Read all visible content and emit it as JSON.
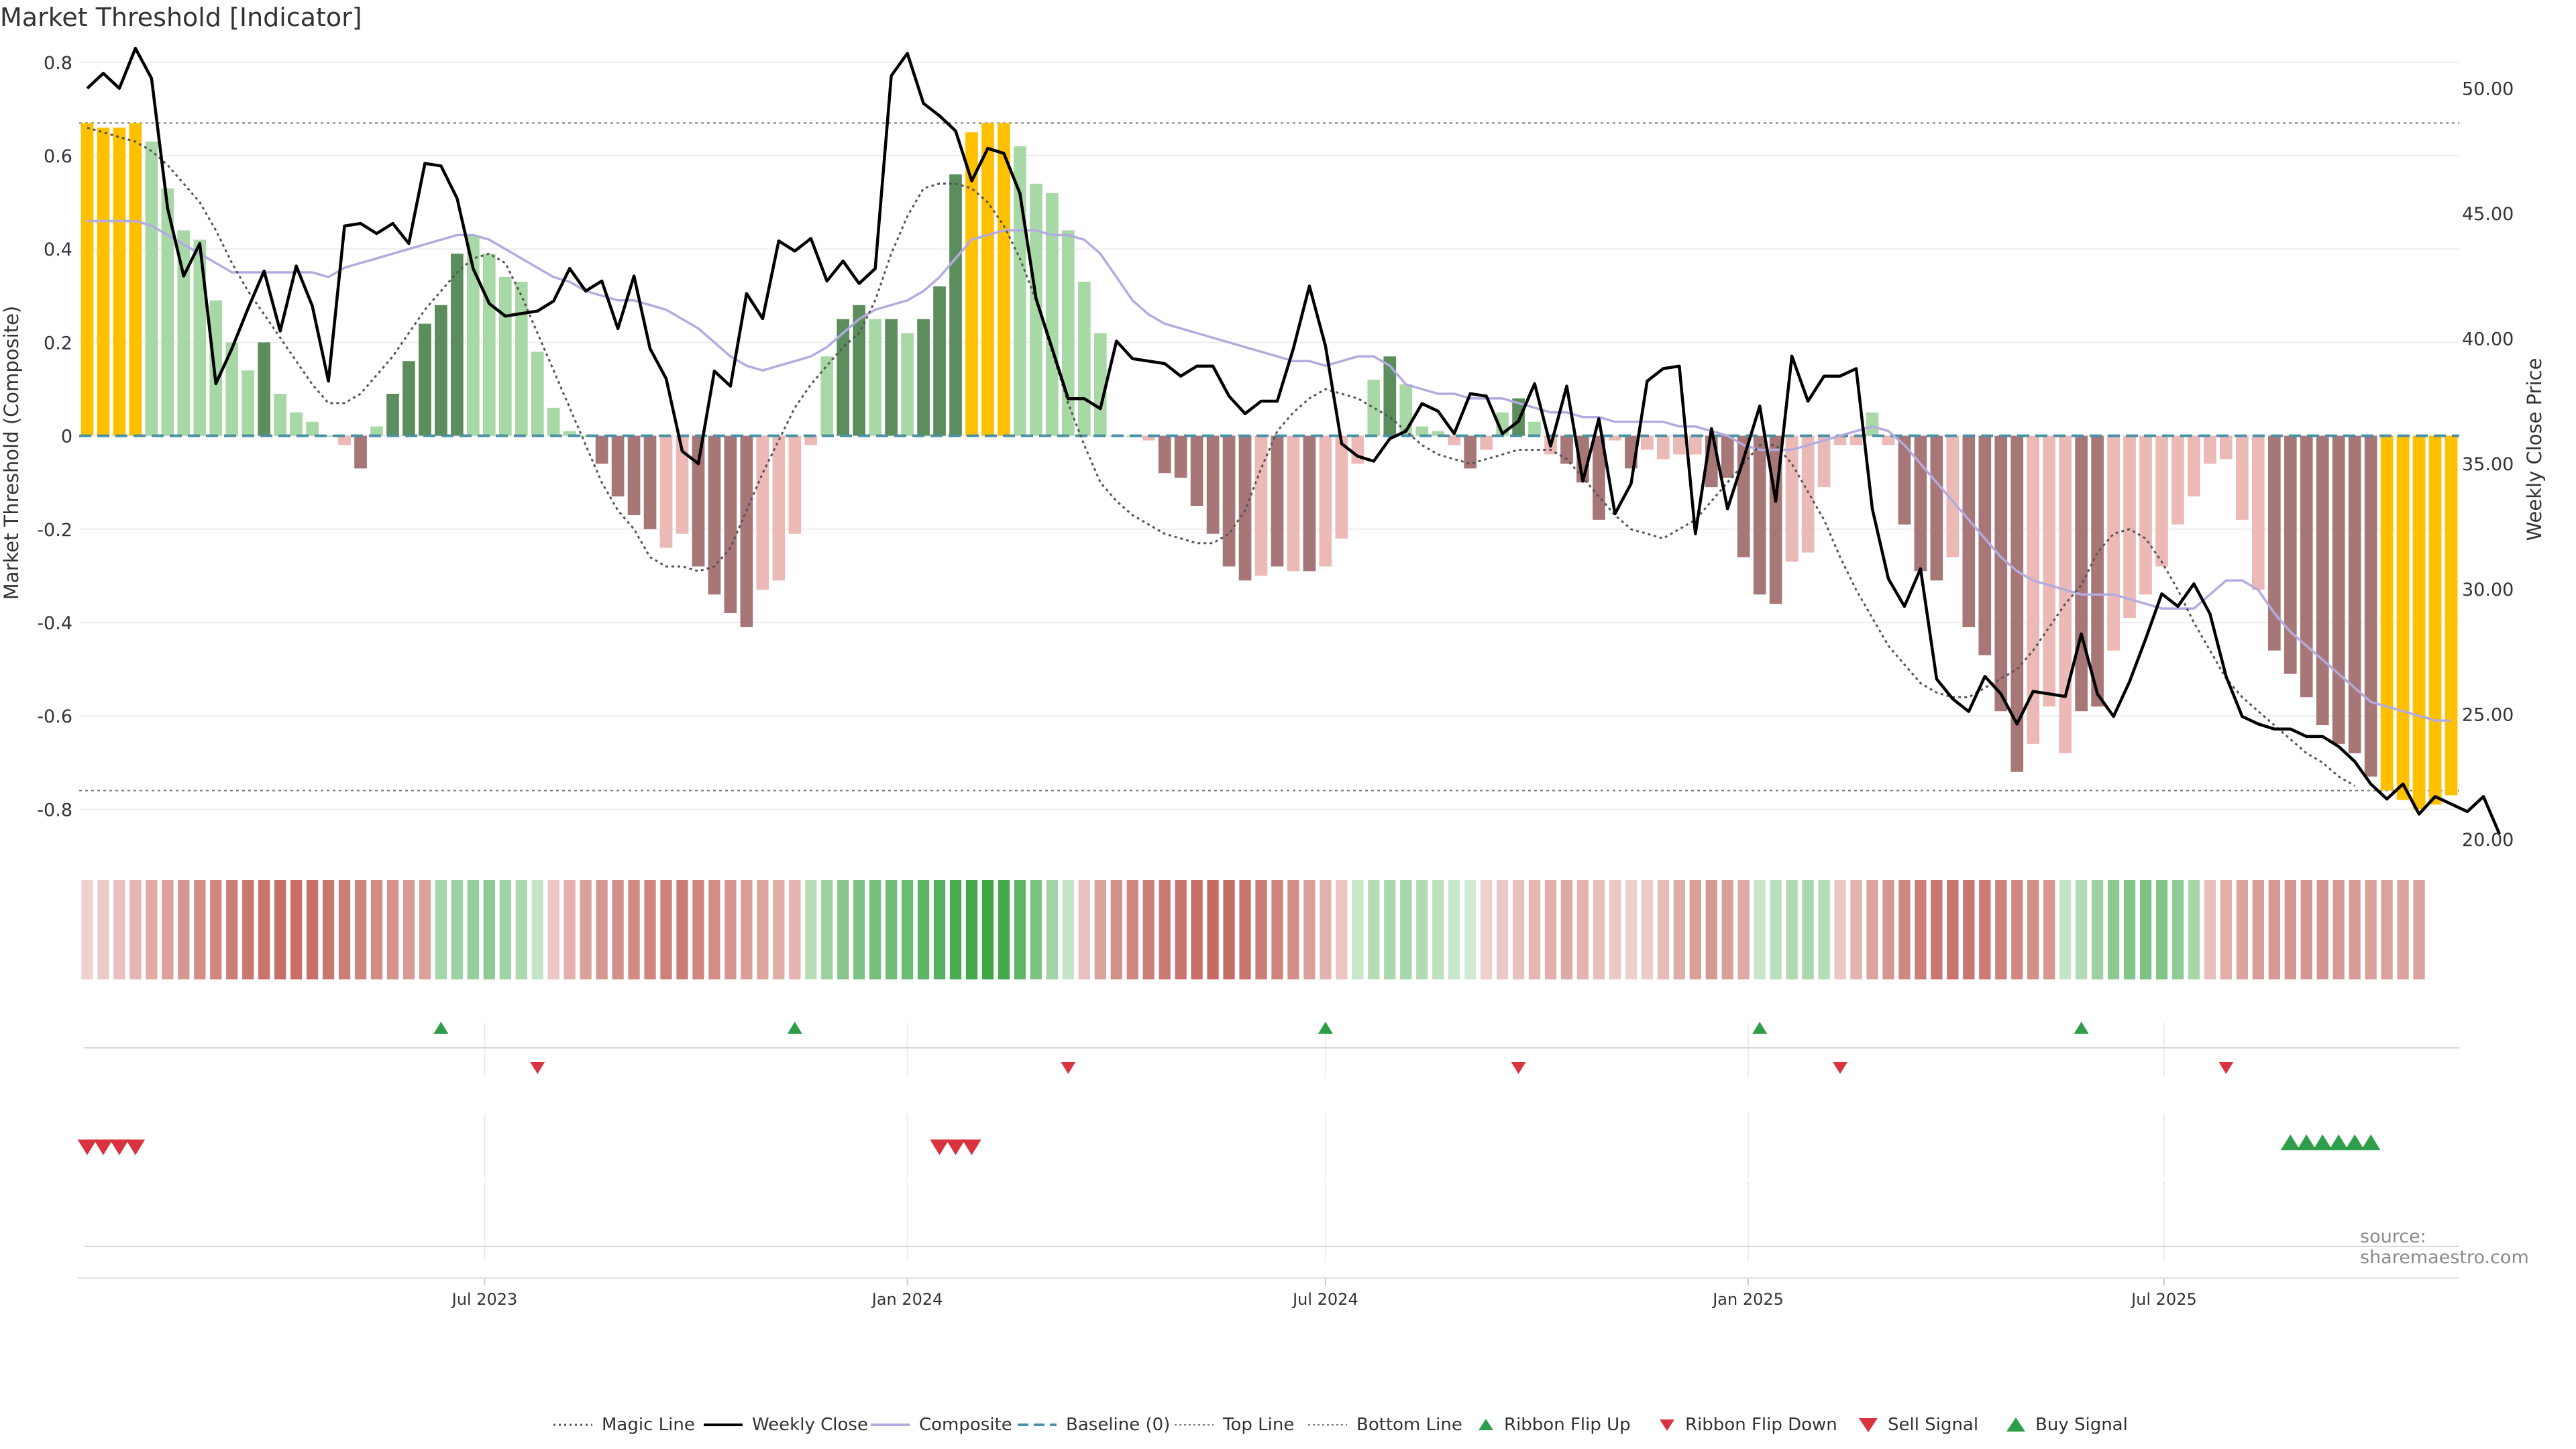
{
  "title": "Market Threshold [Indicator]",
  "source": "source: sharemaestro.com",
  "colors": {
    "magic_line": "#555555",
    "weekly_close": "#000000",
    "composite": "#b3abe0",
    "baseline": "#4a90a4",
    "top_line": "#777777",
    "bottom_line": "#777777",
    "bar_gold": "#ffc000",
    "bar_green_dark": "#5c8d5c",
    "bar_green_light": "#a8d8a6",
    "bar_red_dark": "#a77676",
    "bar_red_light": "#ecbab6",
    "ribbon_flip_up": "#2e9e4a",
    "ribbon_flip_down": "#d9333f",
    "sell_signal": "#d9333f",
    "buy_signal": "#2e9e4a"
  },
  "legend": [
    {
      "label": "Magic Line",
      "icon": "dotted-line-icon"
    },
    {
      "label": "Weekly Close",
      "icon": "solid-line-icon"
    },
    {
      "label": "Composite",
      "icon": "lavender-line-icon"
    },
    {
      "label": "Baseline (0)",
      "icon": "dashed-line-icon"
    },
    {
      "label": "Top Line",
      "icon": "dotted-grey-line-icon"
    },
    {
      "label": "Bottom Line",
      "icon": "dotted-grey-line-icon"
    },
    {
      "label": "Ribbon Flip Up",
      "icon": "triangle-up-icon"
    },
    {
      "label": "Ribbon Flip Down",
      "icon": "triangle-down-icon"
    },
    {
      "label": "Sell Signal",
      "icon": "big-triangle-down-icon"
    },
    {
      "label": "Buy Signal",
      "icon": "big-triangle-up-icon"
    }
  ],
  "chart_data": {
    "type": "bar",
    "ylabel_left": "Market Threshold (Composite)",
    "ylabel_right": "Weekly Close Price",
    "ylim_left": [
      -0.88,
      0.83
    ],
    "ylim_right": [
      19.7,
      51.6
    ],
    "yticks_left": [
      "0.8",
      "0.6",
      "0.4",
      "0.2",
      "0",
      "-0.2",
      "-0.4",
      "-0.6",
      "-0.8"
    ],
    "ytick_values_left": [
      0.8,
      0.6,
      0.4,
      0.2,
      0,
      -0.2,
      -0.4,
      -0.6,
      -0.8
    ],
    "yticks_right": [
      "50.00",
      "45.00",
      "40.00",
      "35.00",
      "30.00",
      "25.00",
      "20.00"
    ],
    "ytick_values_right": [
      50,
      45,
      40,
      35,
      30,
      25,
      20
    ],
    "x_start": "2023-01-09",
    "x_step_days": 7,
    "x_tick_labels": [
      "Jul 2023",
      "Jan 2024",
      "Jul 2024",
      "Jan 2025",
      "Jul 2025"
    ],
    "x_tick_dates": [
      "2023-07-01",
      "2024-01-01",
      "2024-07-01",
      "2025-01-01",
      "2025-07-01"
    ],
    "top_line": 0.67,
    "bottom_line": -0.76,
    "baseline": 0,
    "bar_values": [
      0.67,
      0.66,
      0.66,
      0.67,
      0.63,
      0.53,
      0.44,
      0.42,
      0.29,
      0.2,
      0.14,
      0.2,
      0.09,
      0.05,
      0.03,
      0.0,
      -0.02,
      -0.07,
      0.02,
      0.09,
      0.16,
      0.24,
      0.28,
      0.39,
      0.43,
      0.39,
      0.34,
      0.33,
      0.18,
      0.06,
      0.01,
      0.0,
      -0.06,
      -0.13,
      -0.17,
      -0.2,
      -0.24,
      -0.21,
      -0.28,
      -0.34,
      -0.38,
      -0.41,
      -0.33,
      -0.31,
      -0.21,
      -0.02,
      0.17,
      0.25,
      0.28,
      0.25,
      0.25,
      0.22,
      0.25,
      0.32,
      0.56,
      0.65,
      0.67,
      0.67,
      0.62,
      0.54,
      0.52,
      0.44,
      0.33,
      0.22,
      0.0,
      0.0,
      -0.01,
      -0.08,
      -0.09,
      -0.15,
      -0.21,
      -0.28,
      -0.31,
      -0.3,
      -0.28,
      -0.29,
      -0.29,
      -0.28,
      -0.22,
      -0.06,
      0.12,
      0.17,
      0.11,
      0.02,
      0.01,
      -0.02,
      -0.07,
      -0.03,
      0.05,
      0.08,
      0.03,
      -0.04,
      -0.06,
      -0.1,
      -0.18,
      -0.01,
      -0.07,
      -0.03,
      -0.05,
      -0.04,
      -0.04,
      -0.11,
      -0.09,
      -0.26,
      -0.34,
      -0.36,
      -0.27,
      -0.25,
      -0.11,
      -0.02,
      -0.02,
      0.05,
      -0.02,
      -0.19,
      -0.29,
      -0.31,
      -0.26,
      -0.41,
      -0.47,
      -0.59,
      -0.72,
      -0.66,
      -0.58,
      -0.68,
      -0.59,
      -0.58,
      -0.46,
      -0.39,
      -0.34,
      -0.28,
      -0.19,
      -0.13,
      -0.06,
      -0.05,
      -0.18,
      -0.33,
      -0.46,
      -0.51,
      -0.56,
      -0.62,
      -0.66,
      -0.68,
      -0.73,
      -0.76,
      -0.78,
      -0.8,
      -0.79,
      -0.77
    ],
    "bar_colors": [
      "gold",
      "gold",
      "gold",
      "gold",
      "green_light",
      "green_light",
      "green_light",
      "green_light",
      "green_light",
      "green_light",
      "green_light",
      "green_dark",
      "green_light",
      "green_light",
      "green_light",
      "green_light",
      "red_light",
      "red_dark",
      "green_light",
      "green_dark",
      "green_dark",
      "green_dark",
      "green_dark",
      "green_dark",
      "green_light",
      "green_light",
      "green_light",
      "green_light",
      "green_light",
      "green_light",
      "green_light",
      "green_light",
      "red_dark",
      "red_dark",
      "red_dark",
      "red_dark",
      "red_light",
      "red_light",
      "red_dark",
      "red_dark",
      "red_dark",
      "red_dark",
      "red_light",
      "red_light",
      "red_light",
      "red_light",
      "green_light",
      "green_dark",
      "green_dark",
      "green_light",
      "green_dark",
      "green_light",
      "green_dark",
      "green_dark",
      "green_dark",
      "gold",
      "gold",
      "gold",
      "green_light",
      "green_light",
      "green_light",
      "green_light",
      "green_light",
      "green_light",
      "green_light",
      "green_light",
      "red_light",
      "red_dark",
      "red_dark",
      "red_dark",
      "red_dark",
      "red_dark",
      "red_dark",
      "red_light",
      "red_dark",
      "red_light",
      "red_dark",
      "red_light",
      "red_light",
      "red_light",
      "green_light",
      "green_dark",
      "green_light",
      "green_light",
      "green_light",
      "red_light",
      "red_dark",
      "red_light",
      "green_light",
      "green_dark",
      "green_light",
      "red_light",
      "red_dark",
      "red_dark",
      "red_dark",
      "red_light",
      "red_dark",
      "red_light",
      "red_light",
      "red_light",
      "red_light",
      "red_dark",
      "red_dark",
      "red_dark",
      "red_dark",
      "red_dark",
      "red_light",
      "red_light",
      "red_light",
      "red_light",
      "red_light",
      "green_light",
      "red_light",
      "red_dark",
      "red_dark",
      "red_dark",
      "red_light",
      "red_dark",
      "red_dark",
      "red_dark",
      "red_dark",
      "red_light",
      "red_light",
      "red_light",
      "red_dark",
      "red_dark",
      "red_light",
      "red_light",
      "red_light",
      "red_light",
      "red_light",
      "red_light",
      "red_light",
      "red_light",
      "red_light",
      "red_light",
      "red_dark",
      "red_dark",
      "red_dark",
      "red_dark",
      "red_dark",
      "red_dark",
      "red_dark",
      "gold",
      "gold",
      "gold",
      "gold",
      "gold",
      "gold"
    ],
    "series": [
      {
        "name": "Weekly Close",
        "axis": "right",
        "values": [
          50.0,
          50.6,
          50.0,
          51.6,
          50.4,
          45.2,
          42.5,
          43.8,
          38.2,
          39.6,
          41.2,
          42.7,
          40.3,
          42.9,
          41.3,
          38.3,
          44.5,
          44.6,
          44.2,
          44.6,
          43.8,
          47.0,
          46.9,
          45.6,
          42.8,
          41.4,
          40.9,
          41.0,
          41.1,
          41.5,
          42.8,
          41.9,
          42.3,
          40.4,
          42.5,
          39.6,
          38.4,
          35.5,
          35.0,
          38.7,
          38.1,
          41.8,
          40.8,
          43.9,
          43.5,
          44.0,
          42.3,
          43.1,
          42.2,
          42.8,
          50.5,
          51.4,
          49.4,
          48.9,
          48.3,
          46.3,
          47.6,
          47.4,
          45.8,
          41.6,
          39.6,
          37.6,
          37.6,
          37.2,
          39.9,
          39.2,
          39.1,
          39.0,
          38.5,
          38.9,
          38.9,
          37.7,
          37.0,
          37.5,
          37.5,
          39.6,
          42.1,
          39.7,
          35.8,
          35.3,
          35.1,
          36.0,
          36.3,
          37.4,
          37.1,
          36.2,
          37.8,
          37.7,
          36.2,
          36.7,
          38.2,
          35.7,
          38.1,
          34.3,
          36.8,
          33.0,
          34.2,
          38.3,
          38.8,
          38.9,
          32.2,
          36.4,
          33.2,
          35.2,
          37.3,
          33.5,
          39.3,
          37.5,
          38.5,
          38.5,
          38.8,
          33.2,
          30.4,
          29.3,
          30.8,
          26.4,
          25.6,
          25.1,
          26.5,
          25.8,
          24.6,
          25.9,
          25.8,
          25.7,
          28.2,
          25.8,
          24.9,
          26.3,
          28.0,
          29.8,
          29.3,
          30.2,
          29.0,
          26.5,
          24.9,
          24.6,
          24.4,
          24.4,
          24.1,
          24.1,
          23.7,
          23.1,
          22.2,
          21.6,
          22.2,
          21.0,
          21.7,
          21.4,
          21.1,
          21.7,
          20.2
        ]
      },
      {
        "name": "Composite",
        "axis": "left",
        "values": [
          0.46,
          0.46,
          0.46,
          0.46,
          0.45,
          0.43,
          0.41,
          0.39,
          0.37,
          0.35,
          0.35,
          0.35,
          0.35,
          0.35,
          0.35,
          0.34,
          0.36,
          0.37,
          0.38,
          0.39,
          0.4,
          0.41,
          0.42,
          0.43,
          0.43,
          0.42,
          0.4,
          0.38,
          0.36,
          0.34,
          0.33,
          0.31,
          0.3,
          0.29,
          0.29,
          0.28,
          0.27,
          0.25,
          0.23,
          0.2,
          0.17,
          0.15,
          0.14,
          0.15,
          0.16,
          0.17,
          0.19,
          0.22,
          0.25,
          0.27,
          0.28,
          0.29,
          0.31,
          0.34,
          0.38,
          0.42,
          0.43,
          0.44,
          0.44,
          0.44,
          0.43,
          0.43,
          0.42,
          0.39,
          0.34,
          0.29,
          0.26,
          0.24,
          0.23,
          0.22,
          0.21,
          0.2,
          0.19,
          0.18,
          0.17,
          0.16,
          0.16,
          0.15,
          0.16,
          0.17,
          0.17,
          0.15,
          0.11,
          0.1,
          0.09,
          0.09,
          0.08,
          0.08,
          0.08,
          0.07,
          0.06,
          0.05,
          0.05,
          0.04,
          0.04,
          0.03,
          0.03,
          0.03,
          0.03,
          0.02,
          0.02,
          0.01,
          0.0,
          -0.02,
          -0.03,
          -0.03,
          -0.03,
          -0.02,
          -0.01,
          0.0,
          0.01,
          0.02,
          0.01,
          -0.02,
          -0.06,
          -0.1,
          -0.14,
          -0.18,
          -0.22,
          -0.26,
          -0.29,
          -0.31,
          -0.32,
          -0.33,
          -0.34,
          -0.34,
          -0.34,
          -0.35,
          -0.36,
          -0.37,
          -0.37,
          -0.37,
          -0.34,
          -0.31,
          -0.31,
          -0.33,
          -0.38,
          -0.42,
          -0.45,
          -0.48,
          -0.51,
          -0.54,
          -0.57,
          -0.58,
          -0.59,
          -0.6,
          -0.61,
          -0.61
        ]
      },
      {
        "name": "Magic Line",
        "axis": "left",
        "values": [
          0.66,
          0.65,
          0.64,
          0.63,
          0.61,
          0.58,
          0.54,
          0.5,
          0.44,
          0.37,
          0.31,
          0.26,
          0.21,
          0.16,
          0.11,
          0.07,
          0.07,
          0.09,
          0.13,
          0.17,
          0.22,
          0.27,
          0.31,
          0.35,
          0.38,
          0.39,
          0.37,
          0.3,
          0.22,
          0.14,
          0.06,
          -0.02,
          -0.1,
          -0.16,
          -0.2,
          -0.26,
          -0.28,
          -0.28,
          -0.29,
          -0.28,
          -0.24,
          -0.16,
          -0.08,
          -0.01,
          0.06,
          0.11,
          0.15,
          0.19,
          0.22,
          0.29,
          0.39,
          0.47,
          0.53,
          0.54,
          0.54,
          0.53,
          0.5,
          0.45,
          0.38,
          0.29,
          0.18,
          0.07,
          -0.02,
          -0.1,
          -0.14,
          -0.17,
          -0.19,
          -0.21,
          -0.22,
          -0.23,
          -0.23,
          -0.21,
          -0.16,
          -0.07,
          0.01,
          0.05,
          0.08,
          0.1,
          0.09,
          0.08,
          0.06,
          0.04,
          0.01,
          -0.02,
          -0.04,
          -0.05,
          -0.06,
          -0.05,
          -0.04,
          -0.03,
          -0.03,
          -0.03,
          -0.05,
          -0.09,
          -0.13,
          -0.17,
          -0.2,
          -0.21,
          -0.22,
          -0.2,
          -0.18,
          -0.14,
          -0.1,
          -0.06,
          -0.02,
          -0.02,
          -0.06,
          -0.12,
          -0.18,
          -0.26,
          -0.33,
          -0.39,
          -0.45,
          -0.49,
          -0.53,
          -0.55,
          -0.56,
          -0.56,
          -0.54,
          -0.52,
          -0.5,
          -0.46,
          -0.41,
          -0.36,
          -0.32,
          -0.25,
          -0.21,
          -0.2,
          -0.22,
          -0.27,
          -0.33,
          -0.4,
          -0.46,
          -0.52,
          -0.56,
          -0.59,
          -0.62,
          -0.65,
          -0.68,
          -0.7,
          -0.73,
          -0.75
        ]
      }
    ],
    "ribbon": {
      "color_by_index": true,
      "stripes": [
        "#f0d0ce",
        "#eccac7",
        "#e9c0bd",
        "#e4b5b1",
        "#e0aaa5",
        "#dba09a",
        "#d7968f",
        "#d48e87",
        "#d0857e",
        "#cc7d75",
        "#c97870",
        "#c8736b",
        "#c76e66",
        "#c76e66",
        "#c67069",
        "#c9766f",
        "#cc7d76",
        "#cf857f",
        "#d38c86",
        "#d6938d",
        "#d89a94",
        "#dba19b",
        "#a6d6ab",
        "#9dd1a2",
        "#96ce9b",
        "#8fcb95",
        "#a0d3a6",
        "#acd8b1",
        "#c4e4c6",
        "#ebc7c4",
        "#e3b0ac",
        "#dba19c",
        "#d69691",
        "#d38f89",
        "#d18a84",
        "#cf857f",
        "#cd817b",
        "#cb7d77",
        "#cf857f",
        "#d38d88",
        "#d69590",
        "#da9c97",
        "#dea49f",
        "#e2aca7",
        "#e6b4b0",
        "#b6ddb8",
        "#9cd0a0",
        "#87c78c",
        "#7cc282",
        "#75bf7b",
        "#70bd76",
        "#6bbb72",
        "#5fb566",
        "#55b15d",
        "#4aac53",
        "#43a84b",
        "#3fa648",
        "#44a84c",
        "#60b567",
        "#7dc383",
        "#a2d4a6",
        "#c6e5c8",
        "#e8c0bd",
        "#dba19c",
        "#d4918b",
        "#d08780",
        "#cd7f78",
        "#ca7a73",
        "#c8746d",
        "#c67069",
        "#c46b64",
        "#c56e67",
        "#c87570",
        "#cb7c76",
        "#cf837d",
        "#d58f89",
        "#dca09b",
        "#e4b2ae",
        "#ecc5c2",
        "#c8e6ca",
        "#b6ddb8",
        "#aad7ad",
        "#a6d6a9",
        "#b1dbb4",
        "#bde1bf",
        "#c8e6ca",
        "#d0e9d2",
        "#eed0cd",
        "#ebc8c5",
        "#e7bfbb",
        "#e4b6b2",
        "#e1aea9",
        "#deaaa5",
        "#e3b3af",
        "#e8beba",
        "#ecc8c5",
        "#efcfcc",
        "#edcbc8",
        "#e7bcb8",
        "#e0aca7",
        "#d9a09a",
        "#d59891",
        "#d9a09a",
        "#dfaaa5",
        "#c7e5c9",
        "#badfbc",
        "#b0dab3",
        "#aad8ad",
        "#b6ddb8",
        "#ebc6c3",
        "#e4b4b0",
        "#dda49f",
        "#d6958f",
        "#d08780",
        "#cc7d77",
        "#c97770",
        "#c8736c",
        "#c97570",
        "#cb7b74",
        "#ce817b",
        "#d18882",
        "#d58f89",
        "#d8958f",
        "#c6e5c8",
        "#b2dbb5",
        "#9dd1a1",
        "#8bca90",
        "#82c588",
        "#7dc283",
        "#80c486",
        "#91cc96",
        "#a7d6ab",
        "#e8bfbb",
        "#e1aeaa",
        "#dca49e",
        "#d99d97",
        "#d79993",
        "#d69790",
        "#d59590",
        "#d49591",
        "#d69892",
        "#d89b95",
        "#da9f99",
        "#dba29c",
        "#dca39e",
        "#dca39e"
      ],
      "flip_up_indices": [
        22,
        44,
        77,
        104,
        124
      ],
      "flip_down_indices": [
        28,
        61,
        89,
        109,
        133
      ],
      "sell_signal_indices": [
        0,
        1,
        2,
        3,
        53,
        54,
        55
      ],
      "buy_signal_indices": [
        137,
        138,
        139,
        140,
        141,
        142
      ]
    }
  }
}
